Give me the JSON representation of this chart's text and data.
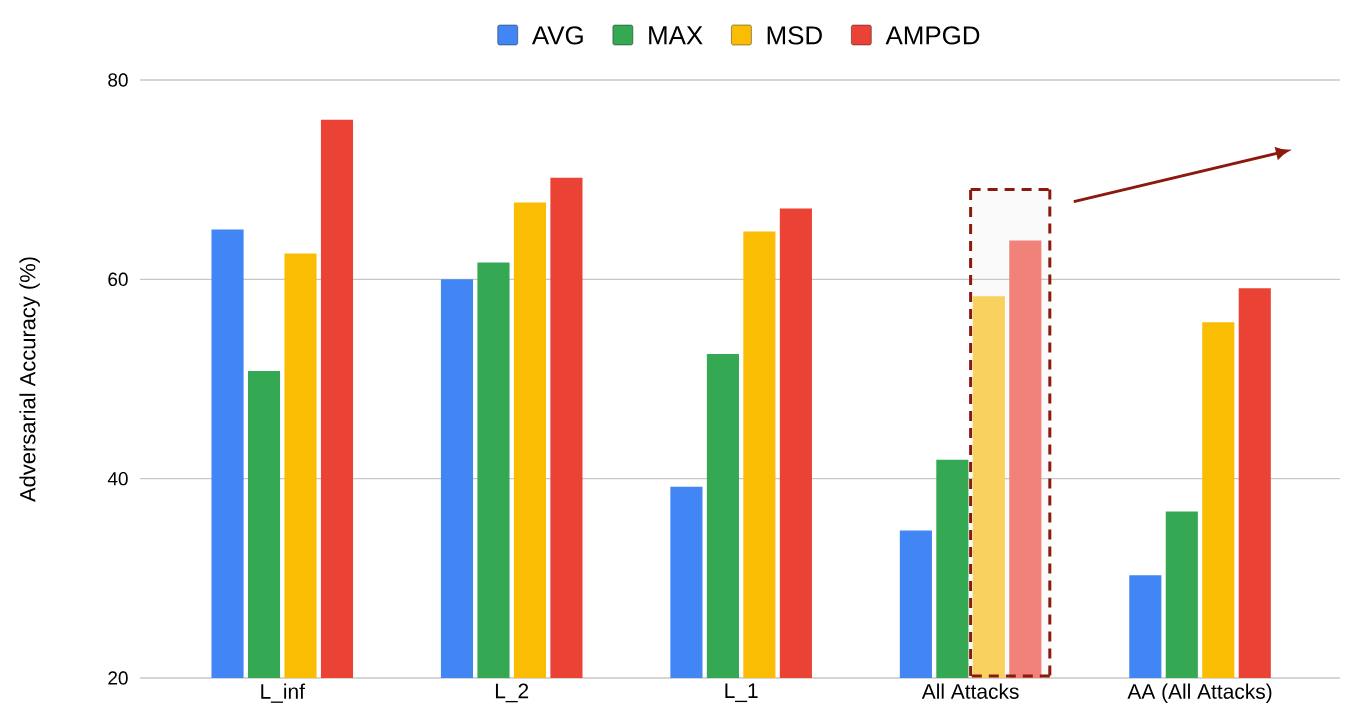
{
  "chart_data": {
    "type": "bar",
    "ylabel": "Adversarial Accuracy (%)",
    "categories": [
      "L_inf",
      "L_2",
      "L_1",
      "All Attacks",
      "AA (All Attacks)"
    ],
    "series": [
      {
        "name": "AVG",
        "color": "#4285f4",
        "values": [
          65.0,
          60.0,
          39.2,
          34.8,
          30.3
        ]
      },
      {
        "name": "MAX",
        "color": "#34a853",
        "values": [
          50.8,
          61.7,
          52.5,
          41.9,
          36.7
        ]
      },
      {
        "name": "MSD",
        "color": "#fbbc04",
        "colors": [
          "#fbbc04",
          "#fbbc04",
          "#fbbc04",
          "#f8d15e",
          "#fbbc04"
        ],
        "values": [
          62.6,
          67.7,
          64.8,
          58.3,
          55.7
        ]
      },
      {
        "name": "AMPGD",
        "color": "#ea4335",
        "colors": [
          "#ea4335",
          "#ea4335",
          "#ea4335",
          "#f0827a",
          "#ea4335"
        ],
        "values": [
          76.0,
          70.2,
          67.1,
          63.9,
          59.1
        ]
      }
    ],
    "ylim": [
      20,
      80
    ],
    "yticks": [
      20,
      40,
      60,
      80
    ],
    "grid": "y",
    "legend": "top"
  }
}
